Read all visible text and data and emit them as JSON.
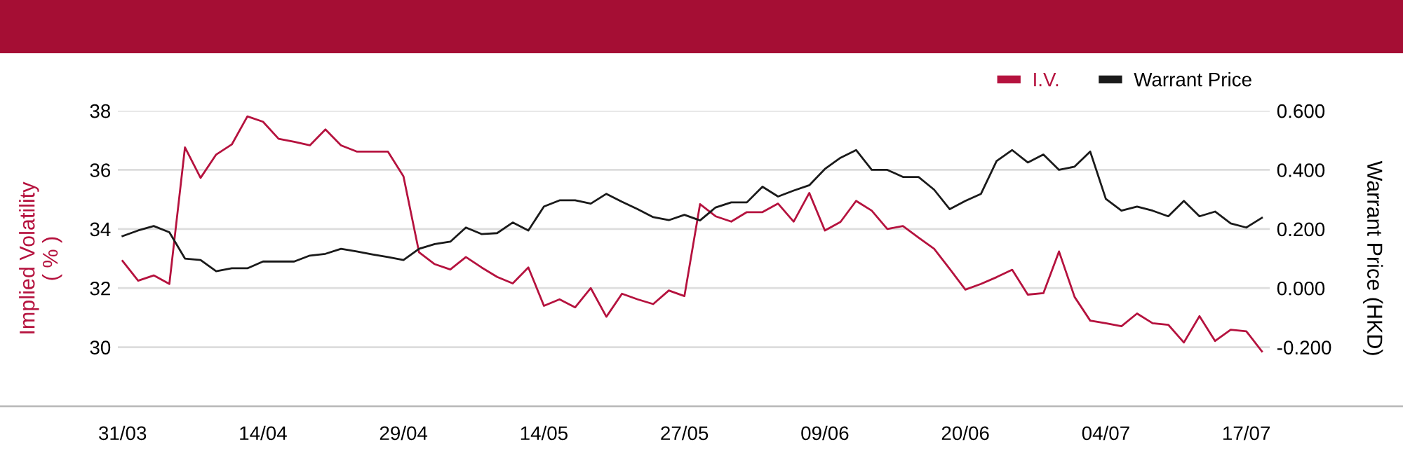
{
  "chart_data": {
    "type": "line",
    "categories": [
      "31/03",
      null,
      null,
      null,
      null,
      null,
      null,
      null,
      null,
      "14/04",
      null,
      null,
      null,
      null,
      null,
      null,
      null,
      null,
      "29/04",
      null,
      null,
      null,
      null,
      null,
      null,
      null,
      null,
      "14/05",
      null,
      null,
      null,
      null,
      null,
      null,
      null,
      null,
      "27/05",
      null,
      null,
      null,
      null,
      null,
      null,
      null,
      null,
      "09/06",
      null,
      null,
      null,
      null,
      null,
      null,
      null,
      null,
      "20/06",
      null,
      null,
      null,
      null,
      null,
      null,
      null,
      null,
      "04/07",
      null,
      null,
      null,
      null,
      null,
      null,
      null,
      null,
      "17/07",
      null
    ],
    "ylabel": "Implied Volatility\n( % )",
    "y2label": "Warrant Price (HKD)",
    "ylim": [
      28,
      38
    ],
    "yticks": [
      30,
      32,
      34,
      36,
      38
    ],
    "y2lim": [
      -0.4,
      0.6
    ],
    "y2ticks": [
      {
        "value": -0.2,
        "label": "-0.200"
      },
      {
        "value": 0.0,
        "label": "0.000"
      },
      {
        "value": 0.2,
        "label": "0.200"
      },
      {
        "value": 0.4,
        "label": "0.400"
      },
      {
        "value": 0.6,
        "label": "0.600"
      }
    ],
    "grid": "y",
    "legend": "top right",
    "marker": "none",
    "line_style": "solid",
    "series": [
      {
        "name": "I.V.",
        "color": "#b5123e",
        "values": [
          32.92,
          32.25,
          32.43,
          32.14,
          36.76,
          35.73,
          36.52,
          36.86,
          37.81,
          37.63,
          37.05,
          36.95,
          36.83,
          37.37,
          36.83,
          36.62,
          36.62,
          36.62,
          35.78,
          33.21,
          32.81,
          32.63,
          33.05,
          32.7,
          32.38,
          32.16,
          32.7,
          31.4,
          31.62,
          31.35,
          32.0,
          31.03,
          31.81,
          31.62,
          31.46,
          31.92,
          31.73,
          34.84,
          34.43,
          34.25,
          34.57,
          34.57,
          34.86,
          34.25,
          35.22,
          33.95,
          34.24,
          34.95,
          34.62,
          34.0,
          34.1,
          33.71,
          33.33,
          32.65,
          31.95,
          32.14,
          32.37,
          32.62,
          31.78,
          31.83,
          33.24,
          31.7,
          30.9,
          30.81,
          30.71,
          31.14,
          30.81,
          30.76,
          30.16,
          31.05,
          30.21,
          30.59,
          30.54,
          29.86
        ]
      },
      {
        "name": "Warrant Price",
        "color": "#1a1a1a",
        "axis": "y2",
        "values": [
          0.176,
          0.195,
          0.21,
          0.189,
          0.1,
          0.095,
          0.057,
          0.067,
          0.067,
          0.09,
          0.09,
          0.09,
          0.11,
          0.116,
          0.133,
          0.124,
          0.114,
          0.105,
          0.095,
          0.133,
          0.149,
          0.157,
          0.205,
          0.183,
          0.186,
          0.222,
          0.195,
          0.276,
          0.297,
          0.297,
          0.286,
          0.319,
          0.292,
          0.267,
          0.24,
          0.23,
          0.248,
          0.229,
          0.273,
          0.29,
          0.29,
          0.343,
          0.31,
          0.33,
          0.348,
          0.403,
          0.441,
          0.467,
          0.4,
          0.4,
          0.376,
          0.376,
          0.333,
          0.267,
          0.295,
          0.319,
          0.43,
          0.467,
          0.425,
          0.452,
          0.4,
          0.411,
          0.462,
          0.302,
          0.262,
          0.276,
          0.262,
          0.243,
          0.295,
          0.243,
          0.259,
          0.219,
          0.205,
          0.238
        ]
      }
    ]
  }
}
